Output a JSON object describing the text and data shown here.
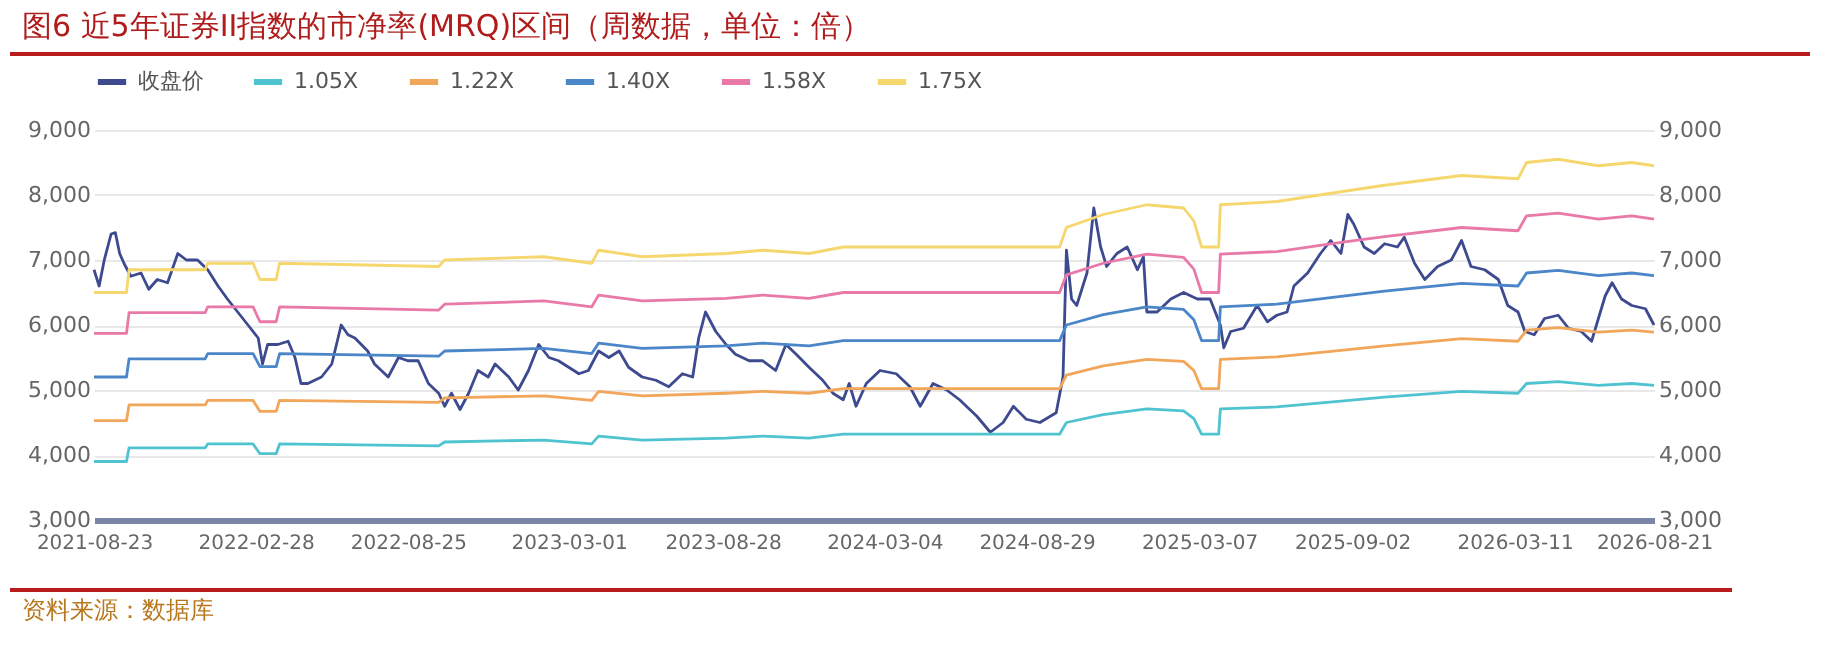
{
  "chart_data": {
    "type": "line",
    "title": "图6  近5年证券II指数的市净率(MRQ)区间（周数据，单位：倍）",
    "annotations": [
      "资料来源：数据库"
    ],
    "xlim": [
      "2021-08-23",
      "2026-08-21"
    ],
    "xticks": [
      {
        "value": "2021-08-23",
        "label": "2021-08-23"
      },
      {
        "value": "2022-02-28",
        "label": "2022-02-28"
      },
      {
        "value": "2022-08-25",
        "label": "2022-08-25"
      },
      {
        "value": "2023-03-01",
        "label": "2023-03-01"
      },
      {
        "value": "2023-08-28",
        "label": "2023-08-28"
      },
      {
        "value": "2024-03-04",
        "label": "2024-03-04"
      },
      {
        "value": "2024-08-29",
        "label": "2024-08-29"
      },
      {
        "value": "2025-03-07",
        "label": "2025-03-07"
      },
      {
        "value": "2025-09-02",
        "label": "2025-09-02"
      },
      {
        "value": "2026-03-11",
        "label": "2026-03-11"
      },
      {
        "value": "2026-08-21",
        "label": "2026-08-21"
      }
    ],
    "ylim": [
      3000,
      9000
    ],
    "yticks": [
      {
        "value": 3000,
        "label": "3,000"
      },
      {
        "value": 4000,
        "label": "4,000"
      },
      {
        "value": 5000,
        "label": "5,000"
      },
      {
        "value": 6000,
        "label": "6,000"
      },
      {
        "value": 7000,
        "label": "7,000"
      },
      {
        "value": 8000,
        "label": "8,000"
      },
      {
        "value": 9000,
        "label": "9,000"
      }
    ],
    "y2lim": [
      3000,
      9000
    ],
    "y2ticks": [
      {
        "value": 3000,
        "label": "3,000"
      },
      {
        "value": 4000,
        "label": "4,000"
      },
      {
        "value": 5000,
        "label": "5,000"
      },
      {
        "value": 6000,
        "label": "6,000"
      },
      {
        "value": 7000,
        "label": "7,000"
      },
      {
        "value": 8000,
        "label": "8,000"
      },
      {
        "value": 9000,
        "label": "9,000"
      }
    ],
    "grid": "y",
    "legend": "top left",
    "marker": "none",
    "line_style": "solid",
    "series": [
      {
        "name": "收盘价",
        "color": "#3d4a8f",
        "x": [
          "2021-08-23",
          "2021-08-29",
          "2021-09-04",
          "2021-09-12",
          "2021-09-17",
          "2021-09-22",
          "2021-09-27",
          "2021-10-05",
          "2021-10-17",
          "2021-10-26",
          "2021-11-05",
          "2021-11-17",
          "2021-11-29",
          "2021-12-09",
          "2021-12-22",
          "2022-01-03",
          "2022-01-15",
          "2022-01-26",
          "2022-02-07",
          "2022-02-19",
          "2022-03-03",
          "2022-03-08",
          "2022-03-14",
          "2022-03-26",
          "2022-04-07",
          "2022-04-15",
          "2022-04-22",
          "2022-04-30",
          "2022-05-16",
          "2022-05-28",
          "2022-06-08",
          "2022-06-16",
          "2022-06-24",
          "2022-07-09",
          "2022-07-17",
          "2022-07-25",
          "2022-08-02",
          "2022-08-14",
          "2022-08-25",
          "2022-09-06",
          "2022-09-18",
          "2022-09-30",
          "2022-10-07",
          "2022-10-15",
          "2022-10-25",
          "2022-11-04",
          "2022-11-15",
          "2022-11-27",
          "2022-12-05",
          "2022-12-21",
          "2023-01-01",
          "2023-01-13",
          "2023-01-25",
          "2023-02-06",
          "2023-02-17",
          "2023-03-01",
          "2023-03-13",
          "2023-03-24",
          "2023-04-05",
          "2023-04-17",
          "2023-04-29",
          "2023-05-10",
          "2023-05-26",
          "2023-06-11",
          "2023-06-26",
          "2023-07-12",
          "2023-07-24",
          "2023-07-31",
          "2023-08-08",
          "2023-08-20",
          "2023-09-01",
          "2023-09-12",
          "2023-09-28",
          "2023-10-14",
          "2023-10-29",
          "2023-11-10",
          "2023-11-22",
          "2023-12-07",
          "2023-12-23",
          "2024-01-04",
          "2024-01-16",
          "2024-01-23",
          "2024-01-31",
          "2024-02-12",
          "2024-02-28",
          "2024-03-18",
          "2024-04-03",
          "2024-04-15",
          "2024-04-30",
          "2024-05-16",
          "2024-05-31",
          "2024-06-20",
          "2024-07-06",
          "2024-07-21",
          "2024-08-02",
          "2024-08-17",
          "2024-09-02",
          "2024-09-21",
          "2024-09-29",
          "2024-10-03",
          "2024-10-09",
          "2024-10-15",
          "2024-10-27",
          "2024-11-04",
          "2024-11-12",
          "2024-11-19",
          "2024-12-01",
          "2024-12-13",
          "2024-12-25",
          "2025-01-01",
          "2025-01-05",
          "2025-01-17",
          "2025-02-02",
          "2025-02-17",
          "2025-03-05",
          "2025-03-20",
          "2025-04-01",
          "2025-04-05",
          "2025-04-13",
          "2025-04-28",
          "2025-05-14",
          "2025-05-26",
          "2025-06-06",
          "2025-06-18",
          "2025-06-26",
          "2025-07-12",
          "2025-07-27",
          "2025-08-08",
          "2025-08-20",
          "2025-08-28",
          "2025-09-04",
          "2025-09-16",
          "2025-09-28",
          "2025-10-10",
          "2025-10-25",
          "2025-11-02",
          "2025-11-14",
          "2025-11-26",
          "2025-12-11",
          "2025-12-27",
          "2026-01-08",
          "2026-01-19",
          "2026-02-04",
          "2026-02-20",
          "2026-03-03",
          "2026-03-15",
          "2026-03-23",
          "2026-04-03",
          "2026-04-15",
          "2026-05-01",
          "2026-05-13",
          "2026-05-28",
          "2026-06-09",
          "2026-06-17",
          "2026-06-25",
          "2026-07-03",
          "2026-07-14",
          "2026-07-26",
          "2026-08-11",
          "2026-08-21"
        ],
        "values": [
          6850,
          6600,
          7000,
          7400,
          7420,
          7100,
          6950,
          6750,
          6800,
          6550,
          6700,
          6650,
          7100,
          7000,
          7000,
          6850,
          6600,
          6400,
          6200,
          6000,
          5800,
          5400,
          5700,
          5700,
          5750,
          5500,
          5100,
          5100,
          5200,
          5400,
          6000,
          5850,
          5800,
          5600,
          5400,
          5300,
          5200,
          5500,
          5450,
          5450,
          5100,
          4950,
          4750,
          4950,
          4700,
          4950,
          5300,
          5200,
          5400,
          5200,
          5000,
          5300,
          5700,
          5500,
          5450,
          5350,
          5250,
          5300,
          5600,
          5500,
          5600,
          5350,
          5200,
          5150,
          5050,
          5250,
          5200,
          5800,
          6200,
          5900,
          5700,
          5550,
          5450,
          5450,
          5300,
          5700,
          5550,
          5350,
          5150,
          4950,
          4850,
          5100,
          4750,
          5100,
          5300,
          5250,
          5050,
          4750,
          5100,
          5000,
          4850,
          4600,
          4350,
          4500,
          4750,
          4550,
          4500,
          4650,
          5200,
          7150,
          6400,
          6300,
          6800,
          7800,
          7200,
          6900,
          7100,
          7200,
          6850,
          7050,
          6200,
          6200,
          6400,
          6500,
          6400,
          6400,
          6000,
          5650,
          5900,
          5950,
          6300,
          6050,
          6150,
          6200,
          6600,
          6800,
          7100,
          7300,
          7100,
          7700,
          7550,
          7200,
          7100,
          7250,
          7200,
          7350,
          6950,
          6700,
          6900,
          7000,
          7300,
          6900,
          6850,
          6700,
          6300,
          6200,
          5900,
          5850,
          6100,
          6150,
          5950,
          5900,
          5750,
          6100,
          6450,
          6650,
          6400,
          6300,
          6250,
          6000
        ]
      },
      {
        "name": "1.05X",
        "color": "#4fc3d0",
        "x": [
          "2021-08-23",
          "2021-09-30",
          "2021-10-03",
          "2021-12-31",
          "2022-01-03",
          "2022-02-25",
          "2022-03-05",
          "2022-03-24",
          "2022-03-28",
          "2022-09-30",
          "2022-10-07",
          "2023-01-31",
          "2023-03-28",
          "2023-04-05",
          "2023-05-26",
          "2023-09-01",
          "2023-10-14",
          "2023-12-07",
          "2024-01-16",
          "2024-09-25",
          "2024-10-03",
          "2024-11-15",
          "2025-01-05",
          "2025-02-17",
          "2025-03-01",
          "2025-03-10",
          "2025-03-30",
          "2025-04-01",
          "2025-06-06",
          "2025-08-20",
          "2025-10-10",
          "2026-01-08",
          "2026-03-15",
          "2026-03-25",
          "2026-05-01",
          "2026-06-17",
          "2026-07-26",
          "2026-08-21"
        ],
        "values": [
          3900,
          3900,
          4110,
          4110,
          4170,
          4170,
          4020,
          4020,
          4170,
          4140,
          4200,
          4230,
          4170,
          4290,
          4230,
          4260,
          4290,
          4260,
          4320,
          4320,
          4500,
          4620,
          4710,
          4680,
          4560,
          4320,
          4320,
          4710,
          4740,
          4830,
          4890,
          4980,
          4950,
          5100,
          5130,
          5070,
          5100,
          5070
        ]
      },
      {
        "name": "1.22X",
        "color": "#f2a65a",
        "x": [
          "2021-08-23",
          "2021-09-30",
          "2021-10-03",
          "2021-12-31",
          "2022-01-03",
          "2022-02-25",
          "2022-03-05",
          "2022-03-24",
          "2022-03-28",
          "2022-09-30",
          "2022-10-07",
          "2023-01-31",
          "2023-03-28",
          "2023-04-05",
          "2023-05-26",
          "2023-09-01",
          "2023-10-14",
          "2023-12-07",
          "2024-01-16",
          "2024-09-25",
          "2024-10-03",
          "2024-11-15",
          "2025-01-05",
          "2025-02-17",
          "2025-03-01",
          "2025-03-10",
          "2025-03-30",
          "2025-04-01",
          "2025-06-06",
          "2025-08-20",
          "2025-10-10",
          "2026-01-08",
          "2026-03-15",
          "2026-03-25",
          "2026-05-01",
          "2026-06-17",
          "2026-07-26",
          "2026-08-21"
        ],
        "values": [
          4530,
          4530,
          4770,
          4770,
          4840,
          4840,
          4670,
          4670,
          4840,
          4810,
          4880,
          4910,
          4840,
          4980,
          4910,
          4950,
          4980,
          4950,
          5020,
          5020,
          5230,
          5370,
          5470,
          5440,
          5300,
          5020,
          5020,
          5470,
          5510,
          5610,
          5680,
          5790,
          5750,
          5920,
          5960,
          5890,
          5920,
          5890
        ]
      },
      {
        "name": "1.40X",
        "color": "#4a86c8",
        "x": [
          "2021-08-23",
          "2021-09-30",
          "2021-10-03",
          "2021-12-31",
          "2022-01-03",
          "2022-02-25",
          "2022-03-05",
          "2022-03-24",
          "2022-03-28",
          "2022-09-30",
          "2022-10-07",
          "2023-01-31",
          "2023-03-28",
          "2023-04-05",
          "2023-05-26",
          "2023-09-01",
          "2023-10-14",
          "2023-12-07",
          "2024-01-16",
          "2024-09-25",
          "2024-10-03",
          "2024-11-15",
          "2025-01-05",
          "2025-02-17",
          "2025-03-01",
          "2025-03-10",
          "2025-03-30",
          "2025-04-01",
          "2025-06-06",
          "2025-08-20",
          "2025-10-10",
          "2026-01-08",
          "2026-03-15",
          "2026-03-25",
          "2026-05-01",
          "2026-06-17",
          "2026-07-26",
          "2026-08-21"
        ],
        "values": [
          5200,
          5200,
          5480,
          5480,
          5560,
          5560,
          5360,
          5360,
          5560,
          5520,
          5600,
          5640,
          5560,
          5720,
          5640,
          5680,
          5720,
          5680,
          5760,
          5760,
          6000,
          6160,
          6280,
          6240,
          6080,
          5760,
          5760,
          6280,
          6320,
          6440,
          6520,
          6640,
          6600,
          6800,
          6840,
          6760,
          6800,
          6760
        ]
      },
      {
        "name": "1.58X",
        "color": "#e879a8",
        "x": [
          "2021-08-23",
          "2021-09-30",
          "2021-10-03",
          "2021-12-31",
          "2022-01-03",
          "2022-02-25",
          "2022-03-05",
          "2022-03-24",
          "2022-03-28",
          "2022-09-30",
          "2022-10-07",
          "2023-01-31",
          "2023-03-28",
          "2023-04-05",
          "2023-05-26",
          "2023-09-01",
          "2023-10-14",
          "2023-12-07",
          "2024-01-16",
          "2024-09-25",
          "2024-10-03",
          "2024-11-15",
          "2025-01-05",
          "2025-02-17",
          "2025-03-01",
          "2025-03-10",
          "2025-03-30",
          "2025-04-01",
          "2025-06-06",
          "2025-08-20",
          "2025-10-10",
          "2026-01-08",
          "2026-03-15",
          "2026-03-25",
          "2026-05-01",
          "2026-06-17",
          "2026-07-26",
          "2026-08-21"
        ],
        "values": [
          5870,
          5870,
          6190,
          6190,
          6280,
          6280,
          6050,
          6050,
          6280,
          6230,
          6320,
          6370,
          6280,
          6460,
          6370,
          6410,
          6460,
          6410,
          6500,
          6500,
          6770,
          6950,
          7090,
          7040,
          6860,
          6500,
          6500,
          7090,
          7130,
          7270,
          7360,
          7500,
          7450,
          7680,
          7720,
          7630,
          7680,
          7630
        ]
      },
      {
        "name": "1.75X",
        "color": "#f5d76e",
        "x": [
          "2021-08-23",
          "2021-09-30",
          "2021-10-03",
          "2021-12-31",
          "2022-01-03",
          "2022-02-25",
          "2022-03-05",
          "2022-03-24",
          "2022-03-28",
          "2022-09-30",
          "2022-10-07",
          "2023-01-31",
          "2023-03-28",
          "2023-04-05",
          "2023-05-26",
          "2023-09-01",
          "2023-10-14",
          "2023-12-07",
          "2024-01-16",
          "2024-09-25",
          "2024-10-03",
          "2024-11-15",
          "2025-01-05",
          "2025-02-17",
          "2025-03-01",
          "2025-03-10",
          "2025-03-30",
          "2025-04-01",
          "2025-06-06",
          "2025-08-20",
          "2025-10-10",
          "2026-01-08",
          "2026-03-15",
          "2026-03-25",
          "2026-05-01",
          "2026-06-17",
          "2026-07-26",
          "2026-08-21"
        ],
        "values": [
          6500,
          6500,
          6850,
          6850,
          6950,
          6950,
          6700,
          6700,
          6950,
          6900,
          7000,
          7050,
          6950,
          7150,
          7050,
          7100,
          7150,
          7100,
          7200,
          7200,
          7500,
          7700,
          7850,
          7800,
          7600,
          7200,
          7200,
          7850,
          7900,
          8050,
          8150,
          8300,
          8250,
          8500,
          8550,
          8450,
          8500,
          8450
        ]
      }
    ]
  }
}
